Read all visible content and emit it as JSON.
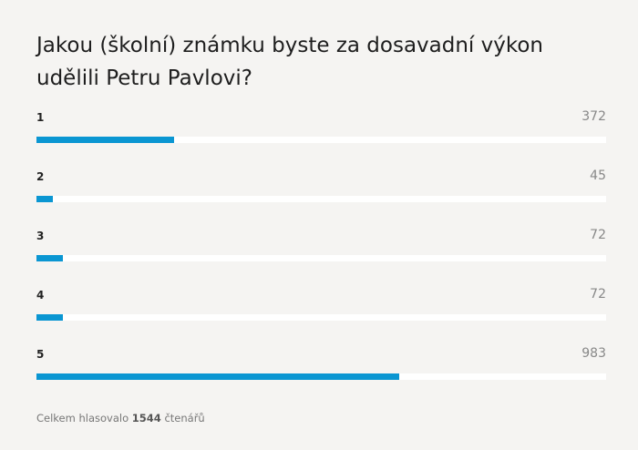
{
  "chart_data": {
    "type": "bar",
    "title": "Jakou (školní) známku byste za dosavadní výkon udělili Petru Pavlovi?",
    "categories": [
      "1",
      "2",
      "3",
      "4",
      "5"
    ],
    "values": [
      372,
      45,
      72,
      72,
      983
    ],
    "color": "#0a96d2",
    "track_color": "#ffffff",
    "footer": {
      "prefix": "Celkem hlasovalo",
      "total": 1544,
      "suffix": "čtenářů"
    }
  }
}
